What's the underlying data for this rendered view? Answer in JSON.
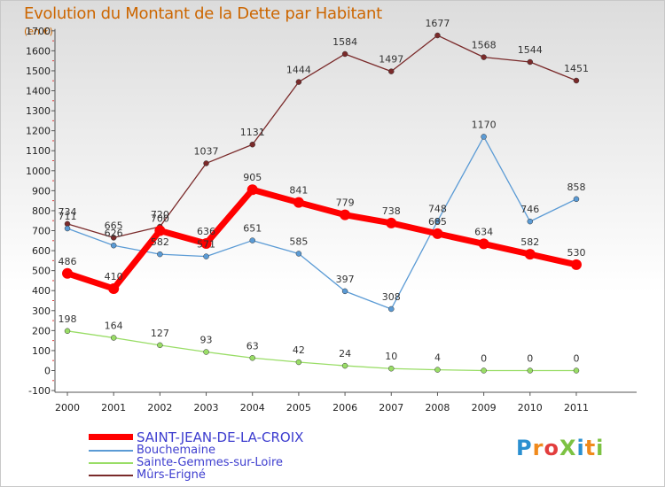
{
  "chart_data": {
    "type": "line",
    "title": "Evolution du Montant de la Dette par Habitant",
    "unit": "(en €)",
    "categories": [
      "2000",
      "2001",
      "2002",
      "2003",
      "2004",
      "2005",
      "2006",
      "2007",
      "2008",
      "2009",
      "2010",
      "2011"
    ],
    "ylim": [
      -100,
      1700
    ],
    "yticks": [
      -100,
      0,
      100,
      200,
      300,
      400,
      500,
      600,
      700,
      800,
      900,
      1000,
      1100,
      1200,
      1300,
      1400,
      1500,
      1600,
      1700
    ],
    "grid": false,
    "legend_position": "bottom-left",
    "series": [
      {
        "name": "SAINT-JEAN-DE-LA-CROIX",
        "color": "#ff0000",
        "values": [
          486,
          410,
          700,
          636,
          905,
          841,
          779,
          738,
          685,
          634,
          582,
          530
        ]
      },
      {
        "name": "Bouchemaine",
        "color": "#5b9bd5",
        "values": [
          711,
          626,
          582,
          571,
          651,
          585,
          397,
          308,
          748,
          1170,
          746,
          858
        ]
      },
      {
        "name": "Sainte-Gemmes-sur-Loire",
        "color": "#99dd66",
        "values": [
          198,
          164,
          127,
          93,
          63,
          42,
          24,
          10,
          4,
          0,
          0,
          0
        ]
      },
      {
        "name": "Mûrs-Erigné",
        "color": "#7a2a2a",
        "values": [
          734,
          665,
          720,
          1037,
          1131,
          1444,
          1584,
          1497,
          1677,
          1568,
          1544,
          1451
        ]
      }
    ]
  },
  "logo": {
    "text": "ProXiti",
    "colors": [
      "#2a8fd0",
      "#f08a1c",
      "#e23d3d",
      "#7cc242",
      "#2a8fd0",
      "#f08a1c",
      "#7cc242"
    ]
  }
}
